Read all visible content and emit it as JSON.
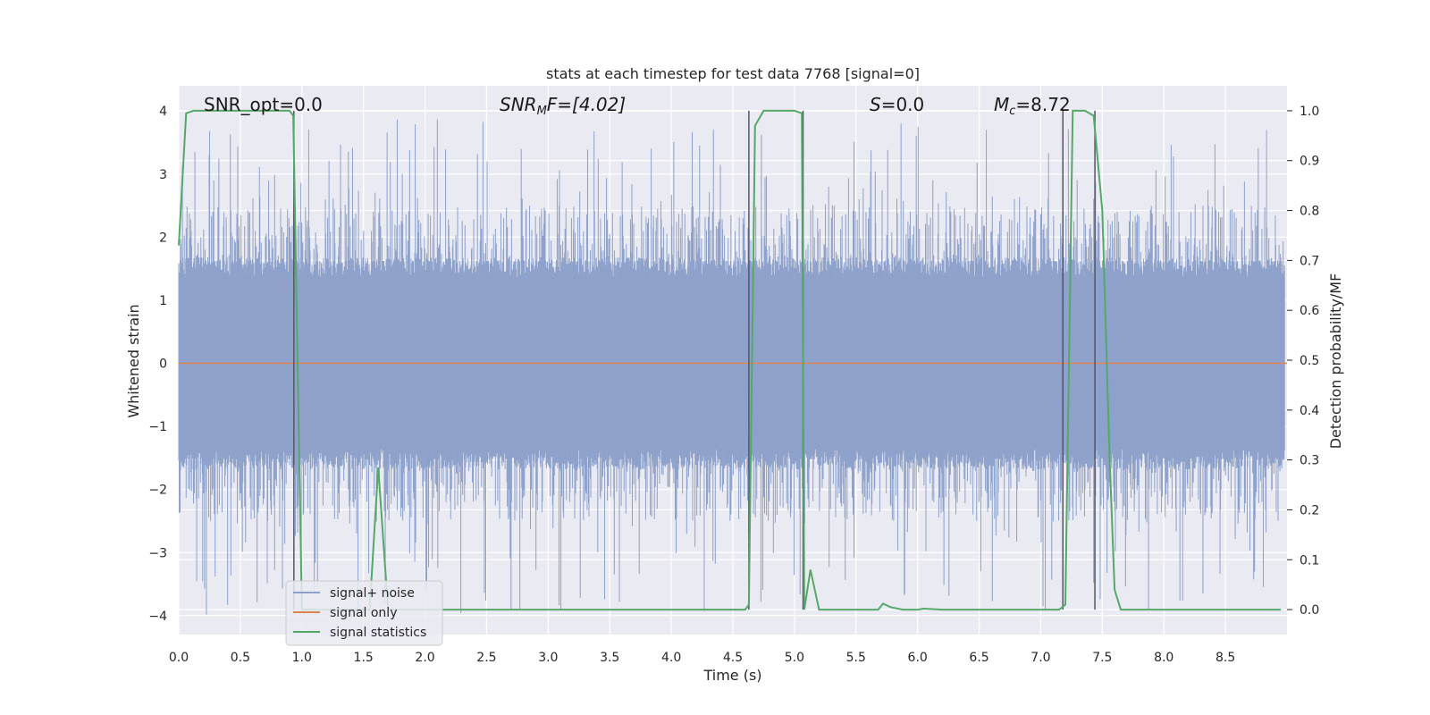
{
  "chart_data": {
    "type": "line",
    "title": "stats at each timestep for test data 7768 [signal=0]",
    "xlabel": "Time (s)",
    "ylabel": "Whitened strain",
    "ylabel_right": "Detection probability/MF",
    "xlim": [
      0.0,
      9.0
    ],
    "ylim": [
      -4.3,
      4.4
    ],
    "ylim_right": [
      -0.05,
      1.05
    ],
    "x_ticks": [
      "0.0",
      "0.5",
      "1.0",
      "1.5",
      "2.0",
      "2.5",
      "3.0",
      "3.5",
      "4.0",
      "4.5",
      "5.0",
      "5.5",
      "6.0",
      "6.5",
      "7.0",
      "7.5",
      "8.0",
      "8.5"
    ],
    "y_ticks": [
      "4",
      "3",
      "2",
      "1",
      "0",
      "−1",
      "−2",
      "−3",
      "−4"
    ],
    "y_right_ticks": [
      "1.0",
      "0.9",
      "0.8",
      "0.7",
      "0.6",
      "0.5",
      "0.4",
      "0.3",
      "0.2",
      "0.1",
      "0.0"
    ],
    "grid": true,
    "legend_position": "lower-left",
    "annotations": {
      "snr_opt": "SNR_opt=0.0",
      "snr_mf_main": "SNR",
      "snr_mf_sub": "M",
      "snr_mf_rest": "F=[4.02]",
      "s_main": "S",
      "s_rest": "=0.0",
      "mc_main": "M",
      "mc_sub": "c",
      "mc_rest": "=8.72"
    },
    "series": [
      {
        "name": "signal+ noise",
        "color": "#8da1cb",
        "axis": "left",
        "description_values": {
          "typical_band": [
            -1.6,
            1.6
          ],
          "peak_max": 3.9,
          "peak_min": -4.0
        }
      },
      {
        "name": "signal only",
        "color": "#dd8452",
        "axis": "left",
        "values_constant": 0.0
      },
      {
        "name": "signal statistics",
        "color": "#55a868",
        "axis": "right",
        "x": [
          0.0,
          0.06,
          0.12,
          0.3,
          0.5,
          0.7,
          0.85,
          0.9,
          0.93,
          1.0,
          1.02,
          1.1,
          1.2,
          1.4,
          1.55,
          1.62,
          1.7,
          1.8,
          2.0,
          3.0,
          4.0,
          4.5,
          4.6,
          4.63,
          4.68,
          4.75,
          4.9,
          5.0,
          5.06,
          5.08,
          5.13,
          5.2,
          5.5,
          5.68,
          5.72,
          5.78,
          5.88,
          6.0,
          6.05,
          6.2,
          6.5,
          7.0,
          7.15,
          7.2,
          7.26,
          7.3,
          7.36,
          7.43,
          7.5,
          7.56,
          7.6,
          7.65,
          8.0,
          8.5,
          8.95
        ],
        "y": [
          0.73,
          0.995,
          1.0,
          1.0,
          1.0,
          1.0,
          1.0,
          1.0,
          0.99,
          0.0,
          0.0,
          0.0,
          0.0,
          0.0,
          0.0,
          0.285,
          0.0,
          0.0,
          0.0,
          0.0,
          0.0,
          0.0,
          0.0,
          0.01,
          0.97,
          1.0,
          1.0,
          1.0,
          0.995,
          0.0,
          0.08,
          0.0,
          0.0,
          0.0,
          0.012,
          0.005,
          0.0,
          0.0,
          0.002,
          0.0,
          0.0,
          0.0,
          0.0,
          0.01,
          1.0,
          1.0,
          1.0,
          0.99,
          0.8,
          0.3,
          0.04,
          0.0,
          0.0,
          0.0,
          0.0
        ]
      }
    ],
    "vertical_markers_x": [
      0.935,
      4.63,
      5.07,
      7.18,
      7.44
    ]
  }
}
